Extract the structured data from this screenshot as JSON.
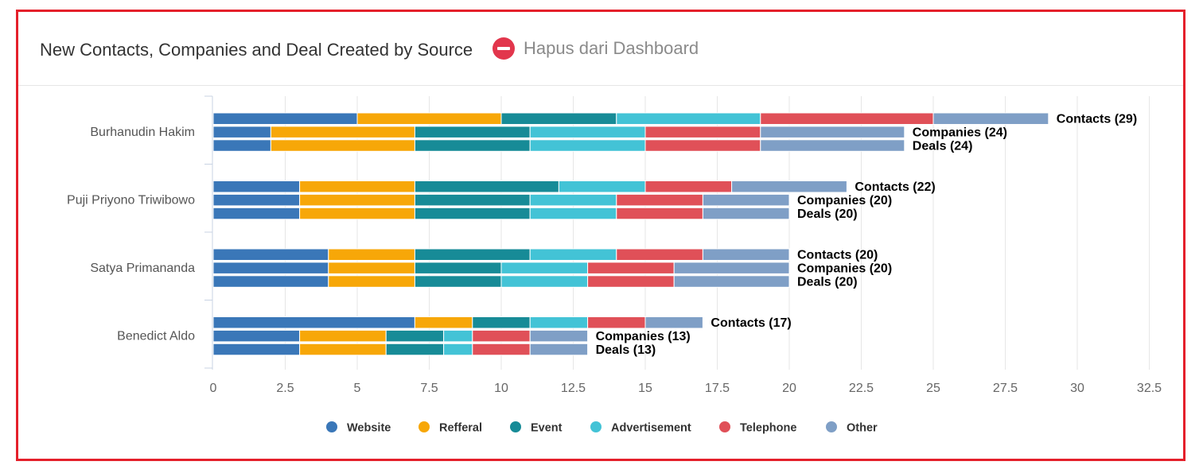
{
  "header": {
    "title": "New Contacts, Companies and Deal Created by Source",
    "remove_label": "Hapus dari Dashboard",
    "remove_icon": "minus-circle-icon"
  },
  "chart_data": {
    "type": "bar",
    "orientation": "horizontal",
    "stacked": true,
    "title": "New Contacts, Companies and Deal Created by Source",
    "xlabel": "",
    "ylabel": "",
    "xlim": [
      0,
      32.5
    ],
    "x_ticks": [
      "0",
      "2.5",
      "5",
      "7.5",
      "10",
      "12.5",
      "15",
      "17.5",
      "20",
      "22.5",
      "25",
      "27.5",
      "30",
      "32.5"
    ],
    "grid": true,
    "legend_position": "bottom",
    "sources": [
      {
        "name": "Website",
        "color": "#3a77b8"
      },
      {
        "name": "Refferal",
        "color": "#f7a708"
      },
      {
        "name": "Event",
        "color": "#178b97"
      },
      {
        "name": "Advertisement",
        "color": "#43c3d6"
      },
      {
        "name": "Telephone",
        "color": "#e05058"
      },
      {
        "name": "Other",
        "color": "#7f9fc6"
      }
    ],
    "groups": [
      {
        "name": "Burhanudin Hakim",
        "bars": [
          {
            "label": "Contacts (29)",
            "values": [
              5,
              5,
              4,
              5,
              6,
              4
            ]
          },
          {
            "label": "Companies (24)",
            "values": [
              2,
              5,
              4,
              4,
              4,
              5
            ]
          },
          {
            "label": "Deals (24)",
            "values": [
              2,
              5,
              4,
              4,
              4,
              5
            ]
          }
        ]
      },
      {
        "name": "Puji Priyono Triwibowo",
        "bars": [
          {
            "label": "Contacts (22)",
            "values": [
              3,
              4,
              5,
              3,
              3,
              4
            ]
          },
          {
            "label": "Companies (20)",
            "values": [
              3,
              4,
              4,
              3,
              3,
              3
            ]
          },
          {
            "label": "Deals (20)",
            "values": [
              3,
              4,
              4,
              3,
              3,
              3
            ]
          }
        ]
      },
      {
        "name": "Satya Primananda",
        "bars": [
          {
            "label": "Contacts (20)",
            "values": [
              4,
              3,
              4,
              3,
              3,
              3
            ]
          },
          {
            "label": "Companies (20)",
            "values": [
              4,
              3,
              3,
              3,
              3,
              4
            ]
          },
          {
            "label": "Deals (20)",
            "values": [
              4,
              3,
              3,
              3,
              3,
              4
            ]
          }
        ]
      },
      {
        "name": "Benedict Aldo",
        "bars": [
          {
            "label": "Contacts (17)",
            "values": [
              7,
              2,
              2,
              2,
              2,
              2
            ]
          },
          {
            "label": "Companies (13)",
            "values": [
              3,
              3,
              2,
              1,
              2,
              2
            ]
          },
          {
            "label": "Deals (13)",
            "values": [
              3,
              3,
              2,
              1,
              2,
              2
            ]
          }
        ]
      }
    ]
  }
}
